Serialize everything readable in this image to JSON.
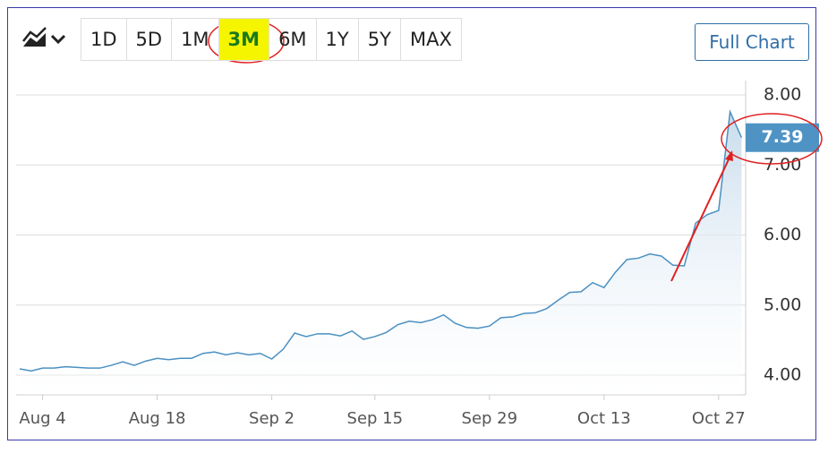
{
  "toolbar": {
    "ranges": [
      "1D",
      "5D",
      "1M",
      "3M",
      "6M",
      "1Y",
      "5Y",
      "MAX"
    ],
    "selected": 3,
    "full_chart": "Full Chart"
  },
  "chart_data": {
    "type": "line",
    "categories": [
      null,
      null,
      "Aug 4",
      null,
      null,
      null,
      null,
      null,
      null,
      null,
      null,
      null,
      "Aug 18",
      null,
      null,
      null,
      null,
      null,
      null,
      null,
      null,
      null,
      "Sep 2",
      null,
      null,
      null,
      null,
      null,
      null,
      null,
      null,
      "Sep 15",
      null,
      null,
      null,
      null,
      null,
      null,
      null,
      null,
      null,
      "Sep 29",
      null,
      null,
      null,
      null,
      null,
      null,
      null,
      null,
      null,
      "Oct 13",
      null,
      null,
      null,
      null,
      null,
      null,
      null,
      null,
      null,
      "Oct 27",
      null,
      null
    ],
    "series": [
      {
        "color": "#4a90c2",
        "values": [
          4.09,
          4.06,
          4.1,
          4.1,
          4.12,
          4.11,
          4.1,
          4.1,
          4.14,
          4.19,
          4.14,
          4.2,
          4.24,
          4.22,
          4.24,
          4.24,
          4.31,
          4.33,
          4.29,
          4.32,
          4.29,
          4.31,
          4.23,
          4.37,
          4.6,
          4.55,
          4.59,
          4.59,
          4.56,
          4.63,
          4.51,
          4.55,
          4.61,
          4.72,
          4.77,
          4.75,
          4.79,
          4.86,
          4.74,
          4.68,
          4.67,
          4.7,
          4.82,
          4.83,
          4.88,
          4.89,
          4.95,
          5.07,
          5.18,
          5.19,
          5.32,
          5.25,
          5.47,
          5.65,
          5.67,
          5.73,
          5.7,
          5.57,
          5.56,
          6.17,
          6.29,
          6.35,
          7.76,
          7.39
        ]
      }
    ],
    "ylim": [
      3.75,
      8.33
    ],
    "yticks": [
      {
        "value": 4,
        "label": "4.00"
      },
      {
        "value": 5,
        "label": "5.00"
      },
      {
        "value": 6,
        "label": "6.00"
      },
      {
        "value": 7,
        "label": "7.00"
      },
      {
        "value": 8,
        "label": "8.00"
      }
    ],
    "grid": true
  }
}
